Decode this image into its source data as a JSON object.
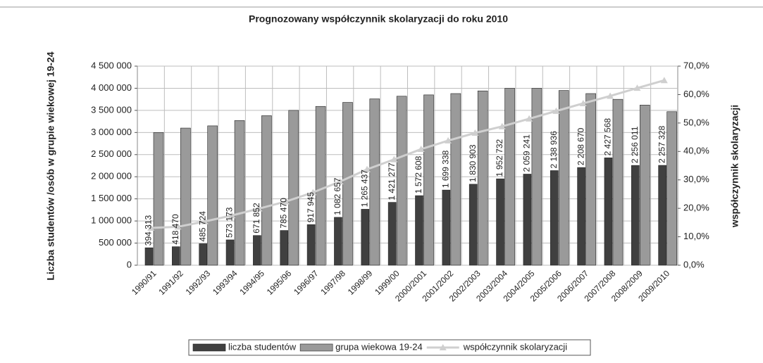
{
  "chart_data": {
    "type": "bar",
    "title": "Prognozowany współczynnik skolaryzacji do roku 2010",
    "y_label": "Liczba studentów /osób w grupie wiekowej 19-24",
    "y2_label": "współczynnik skolaryzacji",
    "categories": [
      "1990/91",
      "1991/92",
      "1992/93",
      "1993/94",
      "1994/95",
      "1995/96",
      "1996/97",
      "1997/98",
      "1998/99",
      "1999/00",
      "2000/2001",
      "2001/2002",
      "2002/2003",
      "2003/2004",
      "2004/2005",
      "2005/2006",
      "2006/2007",
      "2007/2008",
      "2008/2009",
      "2009/2010"
    ],
    "series": [
      {
        "name": "liczba studentów",
        "color": "#404040",
        "values": [
          394313,
          418470,
          485724,
          573173,
          671852,
          785470,
          917945,
          1082657,
          1265437,
          1421277,
          1572608,
          1699338,
          1830903,
          1952732,
          2059241,
          2138936,
          2208670,
          2427568,
          2256011,
          2257328
        ],
        "value_labels": [
          "394 313",
          "418 470",
          "485 724",
          "573 173",
          "671 852",
          "785 470",
          "917 945",
          "1 082 657",
          "1 265 437",
          "1 421 277",
          "1 572 608",
          "1 699 338",
          "1 830 903",
          "1 952 732",
          "2 059 241",
          "2 138 936",
          "2 208 670",
          "2 427 568",
          "2 256 011",
          "2 257 328"
        ]
      },
      {
        "name": "grupa wiekowa 19-24",
        "color": "#9a9a9a",
        "values": [
          3000000,
          3100000,
          3150000,
          3270000,
          3380000,
          3500000,
          3590000,
          3680000,
          3760000,
          3820000,
          3850000,
          3880000,
          3940000,
          4000000,
          4000000,
          3950000,
          3880000,
          3750000,
          3620000,
          3470000
        ]
      },
      {
        "name": "współczynnik skolaryzacji",
        "color": "#cfcfcf",
        "axis": "y2",
        "type": "line",
        "values": [
          13.1,
          13.5,
          15.4,
          17.5,
          19.9,
          22.4,
          25.6,
          29.4,
          33.7,
          37.2,
          40.8,
          43.8,
          46.5,
          48.8,
          51.5,
          54.2,
          56.9,
          59.5,
          62.3,
          65.0
        ]
      }
    ],
    "ylim": [
      0,
      4500000
    ],
    "yticks": [
      0,
      {
        "value": 500000,
        "label": "500 000"
      },
      {
        "value": 1000000,
        "label": "1 000 000"
      },
      {
        "value": 1500000,
        "label": "1 500 000"
      },
      {
        "value": 2000000,
        "label": "2 000 000"
      },
      {
        "value": 2500000,
        "label": "2 500 000"
      },
      {
        "value": 3000000,
        "label": "3 000 000"
      },
      {
        "value": 3500000,
        "label": "3 500 000"
      },
      {
        "value": 4000000,
        "label": "4 000 000"
      },
      {
        "value": 4500000,
        "label": "4 500 000"
      }
    ],
    "y2lim": [
      0,
      70
    ],
    "y2ticks": [
      {
        "value": 0,
        "label": "0,0%"
      },
      {
        "value": 10,
        "label": "10,0%"
      },
      {
        "value": 20,
        "label": "20,0%"
      },
      {
        "value": 30,
        "label": "30,0%"
      },
      {
        "value": 40,
        "label": "40,0%"
      },
      {
        "value": 50,
        "label": "50,0%"
      },
      {
        "value": 60,
        "label": "60,0%"
      },
      {
        "value": 70,
        "label": "70,0%"
      }
    ],
    "grid": true,
    "legend": "bottom"
  }
}
